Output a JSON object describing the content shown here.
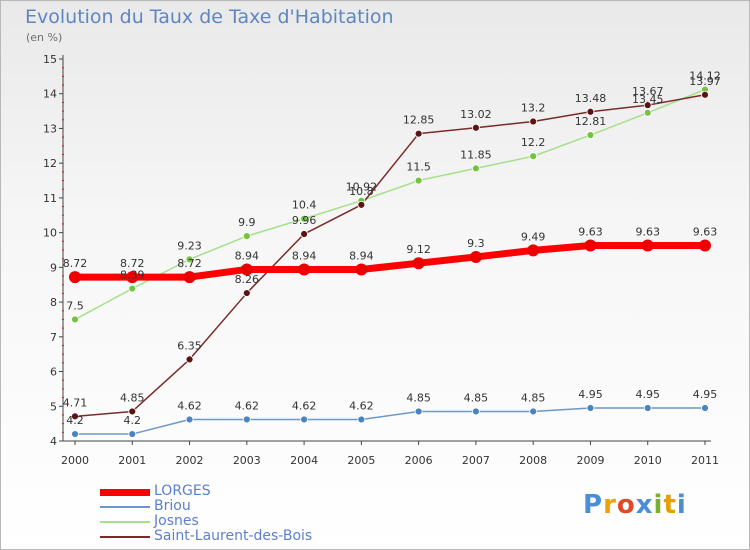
{
  "header": {
    "title": "Evolution du Taux de Taxe d'Habitation",
    "subtitle": "(en %)"
  },
  "logo": {
    "text": "Proxiti"
  },
  "chart_data": {
    "type": "line",
    "title": "Evolution du Taux de Taxe d'Habitation",
    "ylabel": "(en %)",
    "xlabel": "",
    "categories": [
      "2000",
      "2001",
      "2002",
      "2003",
      "2004",
      "2005",
      "2006",
      "2007",
      "2008",
      "2009",
      "2010",
      "2011"
    ],
    "ylim": [
      4,
      15
    ],
    "yticks": [
      4,
      5,
      6,
      7,
      8,
      9,
      10,
      11,
      12,
      13,
      14,
      15
    ],
    "grid": false,
    "legend_position": "bottom-left",
    "series": [
      {
        "name": "LORGES",
        "color": "#ff0000",
        "marker": "#ee0000",
        "width": 7,
        "radius": 6,
        "values": [
          8.72,
          8.72,
          8.72,
          8.94,
          8.94,
          8.94,
          9.12,
          9.3,
          9.49,
          9.63,
          9.63,
          9.63
        ]
      },
      {
        "name": "Briou",
        "color": "#6b98c8",
        "marker": "#4a84c0",
        "width": 1.5,
        "radius": 3.5,
        "values": [
          4.2,
          4.2,
          4.62,
          4.62,
          4.62,
          4.62,
          4.85,
          4.85,
          4.85,
          4.95,
          4.95,
          4.95
        ]
      },
      {
        "name": "Josnes",
        "color": "#a6e08a",
        "marker": "#74c240",
        "width": 1.5,
        "radius": 3.5,
        "values": [
          7.5,
          8.39,
          9.23,
          9.9,
          10.4,
          10.92,
          11.5,
          11.85,
          12.2,
          12.81,
          13.45,
          14.12
        ]
      },
      {
        "name": "Saint-Laurent-des-Bois",
        "color": "#7a2a2a",
        "marker": "#5a1414",
        "width": 1.5,
        "radius": 3.5,
        "values": [
          4.71,
          4.85,
          6.35,
          8.26,
          9.96,
          10.8,
          12.85,
          13.02,
          13.2,
          13.48,
          13.67,
          13.97
        ]
      }
    ],
    "data_labels": {
      "LORGES": [
        "8.72",
        "8.72",
        "8.72",
        "8.94",
        "8.94",
        "8.94",
        "9.12",
        "9.3",
        "9.49",
        "9.63",
        "9.63",
        "9.63"
      ],
      "Briou": [
        "4.2",
        "4.2",
        "4.62",
        "4.62",
        "4.62",
        "4.62",
        "4.85",
        "4.85",
        "4.85",
        "4.95",
        "4.95",
        "4.95"
      ],
      "Josnes": [
        "7.5",
        "8.39",
        "9.23",
        "9.9",
        "10.4",
        "10.92",
        "11.5",
        "11.85",
        "12.2",
        "12.81",
        "13.45",
        "14.12"
      ],
      "Saint-Laurent-des-Bois": [
        "4.71",
        "4.85",
        "6.35",
        "8.26",
        "9.96",
        "10.8",
        "12.85",
        "13.02",
        "13.2",
        "13.48",
        "13.67",
        "13.97"
      ]
    }
  }
}
